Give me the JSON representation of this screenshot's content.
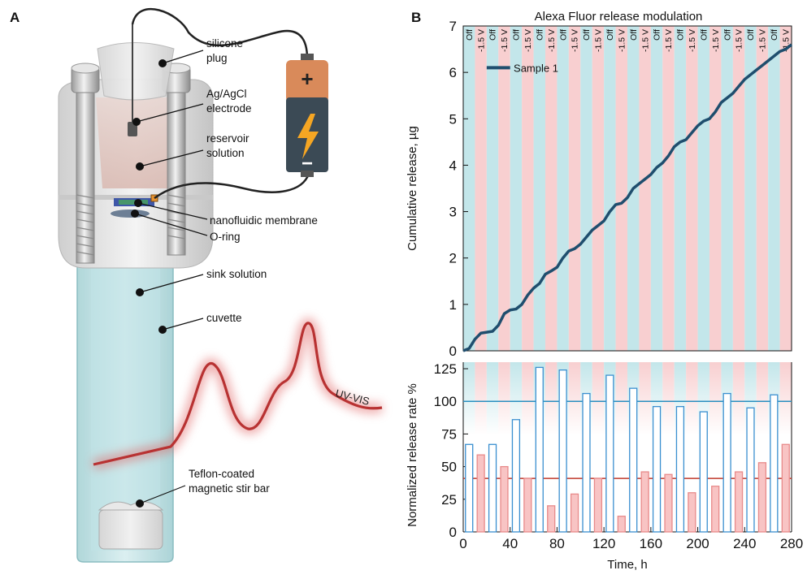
{
  "panels": {
    "left_letter": "A",
    "right_letter": "B"
  },
  "illustration": {
    "labels": {
      "plug": [
        "silicone",
        "plug"
      ],
      "electrode": [
        "Ag/AgCl",
        "electrode"
      ],
      "reservoir": [
        "reservoir",
        "solution"
      ],
      "membrane": "nanofluidic membrane",
      "oring": "O-ring",
      "sink": "sink solution",
      "cuvette": "cuvette",
      "stirbar": [
        "Teflon-coated",
        "magnetic stir bar"
      ],
      "uvvis": "UV-VIS",
      "battery_plus": "+",
      "battery_minus": "−"
    },
    "colors": {
      "glass": "#bfe0e2",
      "metal": "#d9d9d9",
      "trace": "#b83232",
      "battery_top": "#d98a5a",
      "battery_body": "#3b4a55",
      "bolt": "#f5a623"
    }
  },
  "chart_data": [
    {
      "type": "line",
      "title": "Alexa Fluor release modulation",
      "xlabel": "",
      "ylabel": "Cumulative release, µg",
      "xlim": [
        0,
        280
      ],
      "ylim": [
        0,
        7
      ],
      "yticks": [
        0,
        1,
        2,
        3,
        4,
        5,
        6,
        7
      ],
      "legend_location": "upper-left",
      "phase_labels": [
        "Off",
        "-1.5 V"
      ],
      "phase_period_h": 20,
      "phase_colors": {
        "Off": "#c3e6ea",
        "-1.5 V": "#f8cfd0"
      },
      "series": [
        {
          "name": "Sample 1",
          "color": "#1f4e6e",
          "x": [
            0,
            5,
            10,
            15,
            20,
            25,
            30,
            35,
            40,
            45,
            50,
            55,
            60,
            65,
            70,
            75,
            80,
            85,
            90,
            95,
            100,
            105,
            110,
            115,
            120,
            125,
            130,
            135,
            140,
            145,
            150,
            155,
            160,
            165,
            170,
            175,
            180,
            185,
            190,
            195,
            200,
            205,
            210,
            215,
            220,
            225,
            230,
            235,
            240,
            245,
            250,
            255,
            260,
            265,
            270,
            275,
            280
          ],
          "y": [
            0,
            0.05,
            0.25,
            0.38,
            0.4,
            0.42,
            0.55,
            0.8,
            0.88,
            0.9,
            1.0,
            1.2,
            1.35,
            1.45,
            1.65,
            1.72,
            1.8,
            2.0,
            2.15,
            2.2,
            2.3,
            2.45,
            2.6,
            2.7,
            2.8,
            3.0,
            3.15,
            3.18,
            3.3,
            3.5,
            3.6,
            3.7,
            3.8,
            3.95,
            4.05,
            4.2,
            4.4,
            4.5,
            4.55,
            4.7,
            4.85,
            4.95,
            5.0,
            5.15,
            5.35,
            5.45,
            5.55,
            5.7,
            5.85,
            5.95,
            6.05,
            6.15,
            6.25,
            6.35,
            6.45,
            6.5,
            6.6
          ]
        }
      ]
    },
    {
      "type": "bar",
      "title": "",
      "xlabel": "Time, h",
      "ylabel": "Normalized release rate %",
      "xlim": [
        0,
        280
      ],
      "ylim": [
        0,
        130
      ],
      "xticks": [
        0,
        40,
        80,
        120,
        160,
        200,
        240,
        280
      ],
      "yticks": [
        0,
        25,
        50,
        75,
        100,
        125
      ],
      "reference_lines": [
        {
          "value": 100,
          "color": "#2a8fc0"
        },
        {
          "value": 41,
          "color": "#c0392b"
        }
      ],
      "series": [
        {
          "name": "Off",
          "color": "#3a8fd0",
          "fill": "#ffffff",
          "x": [
            5,
            25,
            45,
            65,
            85,
            105,
            125,
            145,
            165,
            185,
            205,
            225,
            245,
            265
          ],
          "values": [
            67,
            67,
            86,
            126,
            124,
            106,
            120,
            110,
            96,
            96,
            92,
            106,
            95,
            105
          ]
        },
        {
          "name": "-1.5 V",
          "color": "#e88a8a",
          "fill": "#f8c4c4",
          "x": [
            15,
            35,
            55,
            75,
            95,
            115,
            135,
            155,
            175,
            195,
            215,
            235,
            255,
            275
          ],
          "values": [
            59,
            50,
            41,
            20,
            29,
            41,
            12,
            46,
            44,
            30,
            35,
            46,
            53,
            67
          ]
        }
      ]
    }
  ]
}
